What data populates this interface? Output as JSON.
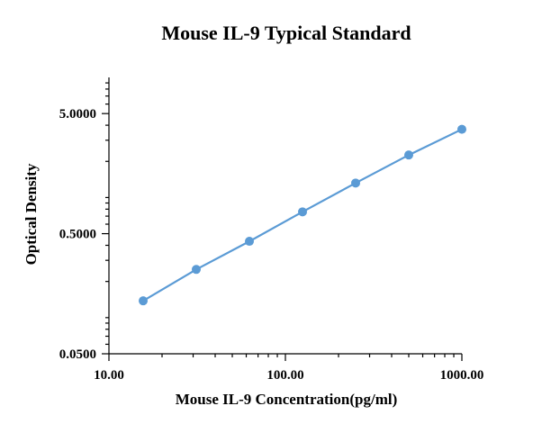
{
  "chart_data": {
    "type": "line",
    "title": "Mouse IL-9 Typical Standard",
    "xlabel": "Mouse IL-9 Concentration(pg/ml)",
    "ylabel": "Optical Density",
    "xscale": "log",
    "yscale": "log",
    "xlim": [
      10,
      1000
    ],
    "ylim": [
      0.05,
      10
    ],
    "x_ticks": [
      10,
      100,
      1000
    ],
    "x_tick_labels": [
      "10.00",
      "100.00",
      "1000.00"
    ],
    "y_ticks": [
      0.05,
      0.5,
      5
    ],
    "y_tick_labels": [
      "0.0500",
      "0.5000",
      "5.0000"
    ],
    "grid": false,
    "legend": "none",
    "series": [
      {
        "color": "#5b9bd5",
        "x": [
          15.63,
          31.25,
          62.5,
          125,
          250,
          500,
          1000
        ],
        "y": [
          0.138,
          0.252,
          0.432,
          0.76,
          1.32,
          2.26,
          3.7
        ]
      }
    ]
  }
}
